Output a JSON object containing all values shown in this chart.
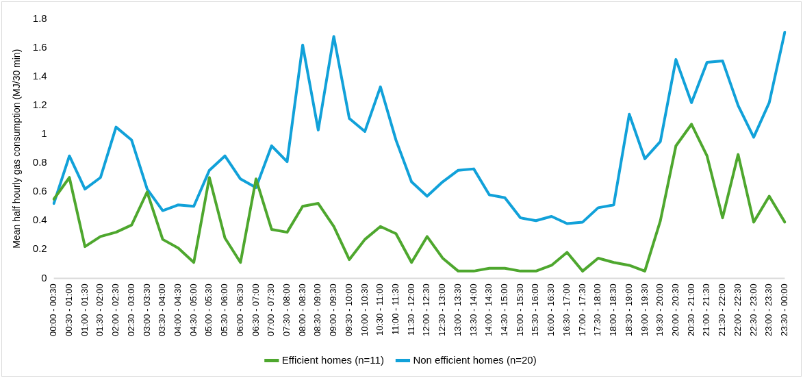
{
  "chart_data": {
    "type": "line",
    "ylabel": "Mean half hourly gas consumption (MJ/30 min)",
    "categories": [
      "00:00 - 00:30",
      "00:30 - 01:00",
      "01:00 - 01:30",
      "01:30 - 02:00",
      "02:00 - 02:30",
      "02:30 - 03:00",
      "03:00 - 03:30",
      "03:30 - 04:00",
      "04:00 - 04:30",
      "04:30 - 05:00",
      "05:00 - 05:30",
      "05:30 - 06:00",
      "06:00 - 06:30",
      "06:30 - 07:00",
      "07:00 - 07:30",
      "07:30 - 08:00",
      "08:00 - 08:30",
      "08:30 - 09:00",
      "09:00 - 09:30",
      "09:30 - 10:00",
      "10:00 - 10:30",
      "10:30 - 11:00",
      "11:00 - 11:30",
      "11:30 - 12:00",
      "12:00 - 12:30",
      "12:30 - 13:00",
      "13:00 - 13:30",
      "13:30 - 14:00",
      "14:00 - 14:30",
      "14:30 - 15:00",
      "15:00 - 15:30",
      "15:30 - 16:00",
      "16:00 - 16:30",
      "16:30 - 17:00",
      "17:00 - 17:30",
      "17:30 - 18:00",
      "18:00 - 18:30",
      "18:30 - 19:00",
      "19:00 - 19:30",
      "19:30 - 20:00",
      "20:00 - 20:30",
      "20:30 - 21:00",
      "21:00 - 21:30",
      "21:30 - 22:00",
      "22:00 - 22:30",
      "22:30 - 23:00",
      "23:00 - 23:30",
      "23:30 - 00:00"
    ],
    "series": [
      {
        "name": "Efficient homes (n=11)",
        "color": "#4ea72e",
        "values": [
          0.55,
          0.7,
          0.22,
          0.29,
          0.32,
          0.37,
          0.6,
          0.27,
          0.21,
          0.11,
          0.7,
          0.28,
          0.11,
          0.69,
          0.34,
          0.32,
          0.5,
          0.52,
          0.36,
          0.13,
          0.27,
          0.36,
          0.31,
          0.11,
          0.29,
          0.14,
          0.05,
          0.05,
          0.07,
          0.07,
          0.05,
          0.05,
          0.09,
          0.18,
          0.05,
          0.14,
          0.11,
          0.09,
          0.05,
          0.4,
          0.92,
          1.07,
          0.85,
          0.42,
          0.86,
          0.39,
          0.57,
          0.39
        ]
      },
      {
        "name": "Non efficient homes (n=20)",
        "color": "#11a1d9",
        "values": [
          0.52,
          0.85,
          0.62,
          0.7,
          1.05,
          0.96,
          0.62,
          0.47,
          0.51,
          0.5,
          0.75,
          0.85,
          0.69,
          0.63,
          0.92,
          0.81,
          1.62,
          1.03,
          1.68,
          1.11,
          1.02,
          1.33,
          0.96,
          0.67,
          0.57,
          0.67,
          0.75,
          0.76,
          0.58,
          0.56,
          0.42,
          0.4,
          0.43,
          0.38,
          0.39,
          0.49,
          0.51,
          1.14,
          0.83,
          0.95,
          1.52,
          1.22,
          1.5,
          1.51,
          1.2,
          0.98,
          1.22,
          1.71
        ]
      }
    ],
    "ylim": [
      0,
      1.8
    ],
    "yticks": [
      0,
      0.2,
      0.4,
      0.6,
      0.8,
      1,
      1.2,
      1.4,
      1.6,
      1.8
    ],
    "grid": false,
    "legend": "bottom",
    "marker": "none",
    "line_style": "solid"
  }
}
